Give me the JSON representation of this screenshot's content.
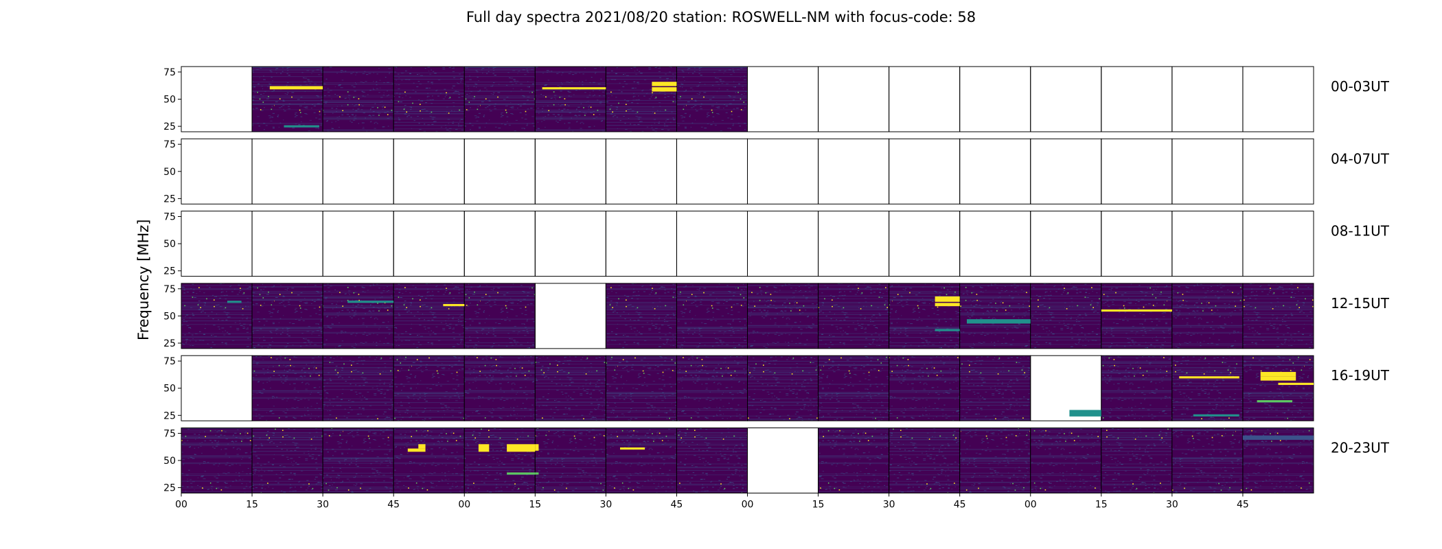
{
  "chart_data": {
    "type": "heatmap",
    "title": "Full day spectra 2021/08/20 station: ROSWELL-NM with focus-code: 58",
    "ylabel": "Frequency [MHz]",
    "xlabel": "",
    "ylim": [
      20,
      80
    ],
    "y_ticks": [
      25,
      50,
      75
    ],
    "x_tick_labels": [
      "00",
      "15",
      "30",
      "45",
      "00",
      "15",
      "30",
      "45",
      "00",
      "15",
      "30",
      "45",
      "00",
      "15",
      "30",
      "45"
    ],
    "colormap": [
      "#440154",
      "#3b528b",
      "#21918c",
      "#5ec962",
      "#fde725"
    ],
    "rows": [
      {
        "label": "00-03UT",
        "panels": [
          0,
          1,
          1,
          1,
          1,
          1,
          1,
          1,
          0,
          0,
          0,
          0,
          0,
          0,
          0,
          0
        ]
      },
      {
        "label": "04-07UT",
        "panels": [
          0,
          0,
          0,
          0,
          0,
          0,
          0,
          0,
          0,
          0,
          0,
          0,
          0,
          0,
          0,
          0
        ]
      },
      {
        "label": "08-11UT",
        "panels": [
          0,
          0,
          0,
          0,
          0,
          0,
          0,
          0,
          0,
          0,
          0,
          0,
          0,
          0,
          0,
          0
        ]
      },
      {
        "label": "12-15UT",
        "panels": [
          1,
          1,
          1,
          1,
          1,
          0,
          1,
          1,
          1,
          1,
          1,
          1,
          1,
          1,
          1,
          1
        ]
      },
      {
        "label": "16-19UT",
        "panels": [
          0,
          1,
          1,
          1,
          1,
          1,
          1,
          1,
          1,
          1,
          1,
          1,
          0,
          1,
          1,
          1
        ]
      },
      {
        "label": "20-23UT",
        "panels": [
          1,
          1,
          1,
          1,
          1,
          1,
          1,
          1,
          0,
          1,
          1,
          1,
          1,
          1,
          1,
          1
        ]
      }
    ],
    "bursts": [
      {
        "row": 0,
        "panel": 1,
        "freq": [
          59,
          62
        ],
        "start": 0.25,
        "end": 1.0,
        "color": "#fde725"
      },
      {
        "row": 0,
        "panel": 1,
        "freq": [
          24,
          26
        ],
        "start": 0.45,
        "end": 0.95,
        "color": "#21918c"
      },
      {
        "row": 0,
        "panel": 5,
        "freq": [
          59,
          61
        ],
        "start": 0.1,
        "end": 1.0,
        "color": "#fde725"
      },
      {
        "row": 0,
        "panel": 6,
        "freq": [
          57,
          61
        ],
        "start": 0.65,
        "end": 1.0,
        "color": "#fde725"
      },
      {
        "row": 0,
        "panel": 6,
        "freq": [
          62,
          66
        ],
        "start": 0.65,
        "end": 1.0,
        "color": "#fde725"
      },
      {
        "row": 3,
        "panel": 0,
        "freq": [
          62,
          64
        ],
        "start": 0.65,
        "end": 0.85,
        "color": "#21918c"
      },
      {
        "row": 3,
        "panel": 2,
        "freq": [
          62,
          64
        ],
        "start": 0.35,
        "end": 1.0,
        "color": "#21918c"
      },
      {
        "row": 3,
        "panel": 3,
        "freq": [
          59,
          61
        ],
        "start": 0.7,
        "end": 1.0,
        "color": "#fde725"
      },
      {
        "row": 3,
        "panel": 10,
        "freq": [
          63,
          68
        ],
        "start": 0.65,
        "end": 1.0,
        "color": "#fde725"
      },
      {
        "row": 3,
        "panel": 10,
        "freq": [
          59,
          62
        ],
        "start": 0.65,
        "end": 1.0,
        "color": "#fde725"
      },
      {
        "row": 3,
        "panel": 10,
        "freq": [
          36,
          38
        ],
        "start": 0.65,
        "end": 1.0,
        "color": "#21918c"
      },
      {
        "row": 3,
        "panel": 11,
        "freq": [
          43,
          47
        ],
        "start": 0.1,
        "end": 1.0,
        "color": "#21918c"
      },
      {
        "row": 3,
        "panel": 13,
        "freq": [
          54,
          56
        ],
        "start": 0.0,
        "end": 1.0,
        "color": "#fde725"
      },
      {
        "row": 4,
        "panel": 12,
        "freq": [
          24,
          30
        ],
        "start": 0.55,
        "end": 1.0,
        "color": "#21918c"
      },
      {
        "row": 4,
        "panel": 14,
        "freq": [
          59,
          61
        ],
        "start": 0.1,
        "end": 0.95,
        "color": "#fde725"
      },
      {
        "row": 4,
        "panel": 14,
        "freq": [
          24,
          26
        ],
        "start": 0.3,
        "end": 0.95,
        "color": "#21918c"
      },
      {
        "row": 4,
        "panel": 15,
        "freq": [
          57,
          61
        ],
        "start": 0.25,
        "end": 0.75,
        "color": "#fde725"
      },
      {
        "row": 4,
        "panel": 15,
        "freq": [
          61,
          65
        ],
        "start": 0.25,
        "end": 0.75,
        "color": "#fde725"
      },
      {
        "row": 4,
        "panel": 15,
        "freq": [
          53,
          55
        ],
        "start": 0.5,
        "end": 1.0,
        "color": "#fde725"
      },
      {
        "row": 4,
        "panel": 15,
        "freq": [
          37,
          39
        ],
        "start": 0.2,
        "end": 0.7,
        "color": "#5ec962"
      },
      {
        "row": 5,
        "panel": 3,
        "freq": [
          58,
          61
        ],
        "start": 0.2,
        "end": 0.45,
        "color": "#fde725"
      },
      {
        "row": 5,
        "panel": 3,
        "freq": [
          61,
          65
        ],
        "start": 0.35,
        "end": 0.45,
        "color": "#fde725"
      },
      {
        "row": 5,
        "panel": 4,
        "freq": [
          58,
          65
        ],
        "start": 0.2,
        "end": 0.35,
        "color": "#fde725"
      },
      {
        "row": 5,
        "panel": 4,
        "freq": [
          58,
          62
        ],
        "start": 0.6,
        "end": 1.0,
        "color": "#fde725"
      },
      {
        "row": 5,
        "panel": 4,
        "freq": [
          62,
          65
        ],
        "start": 0.6,
        "end": 1.0,
        "color": "#fde725"
      },
      {
        "row": 5,
        "panel": 5,
        "freq": [
          59,
          65
        ],
        "start": 0.0,
        "end": 0.05,
        "color": "#fde725"
      },
      {
        "row": 5,
        "panel": 5,
        "freq": [
          37,
          39
        ],
        "start": 0.0,
        "end": 0.05,
        "color": "#5ec962"
      },
      {
        "row": 5,
        "panel": 4,
        "freq": [
          37,
          39
        ],
        "start": 0.6,
        "end": 1.0,
        "color": "#5ec962"
      },
      {
        "row": 5,
        "panel": 6,
        "freq": [
          60,
          62
        ],
        "start": 0.2,
        "end": 0.55,
        "color": "#fde725"
      },
      {
        "row": 5,
        "panel": 15,
        "freq": [
          69,
          73
        ],
        "start": 0.0,
        "end": 1.0,
        "color": "#3b528b"
      }
    ]
  }
}
